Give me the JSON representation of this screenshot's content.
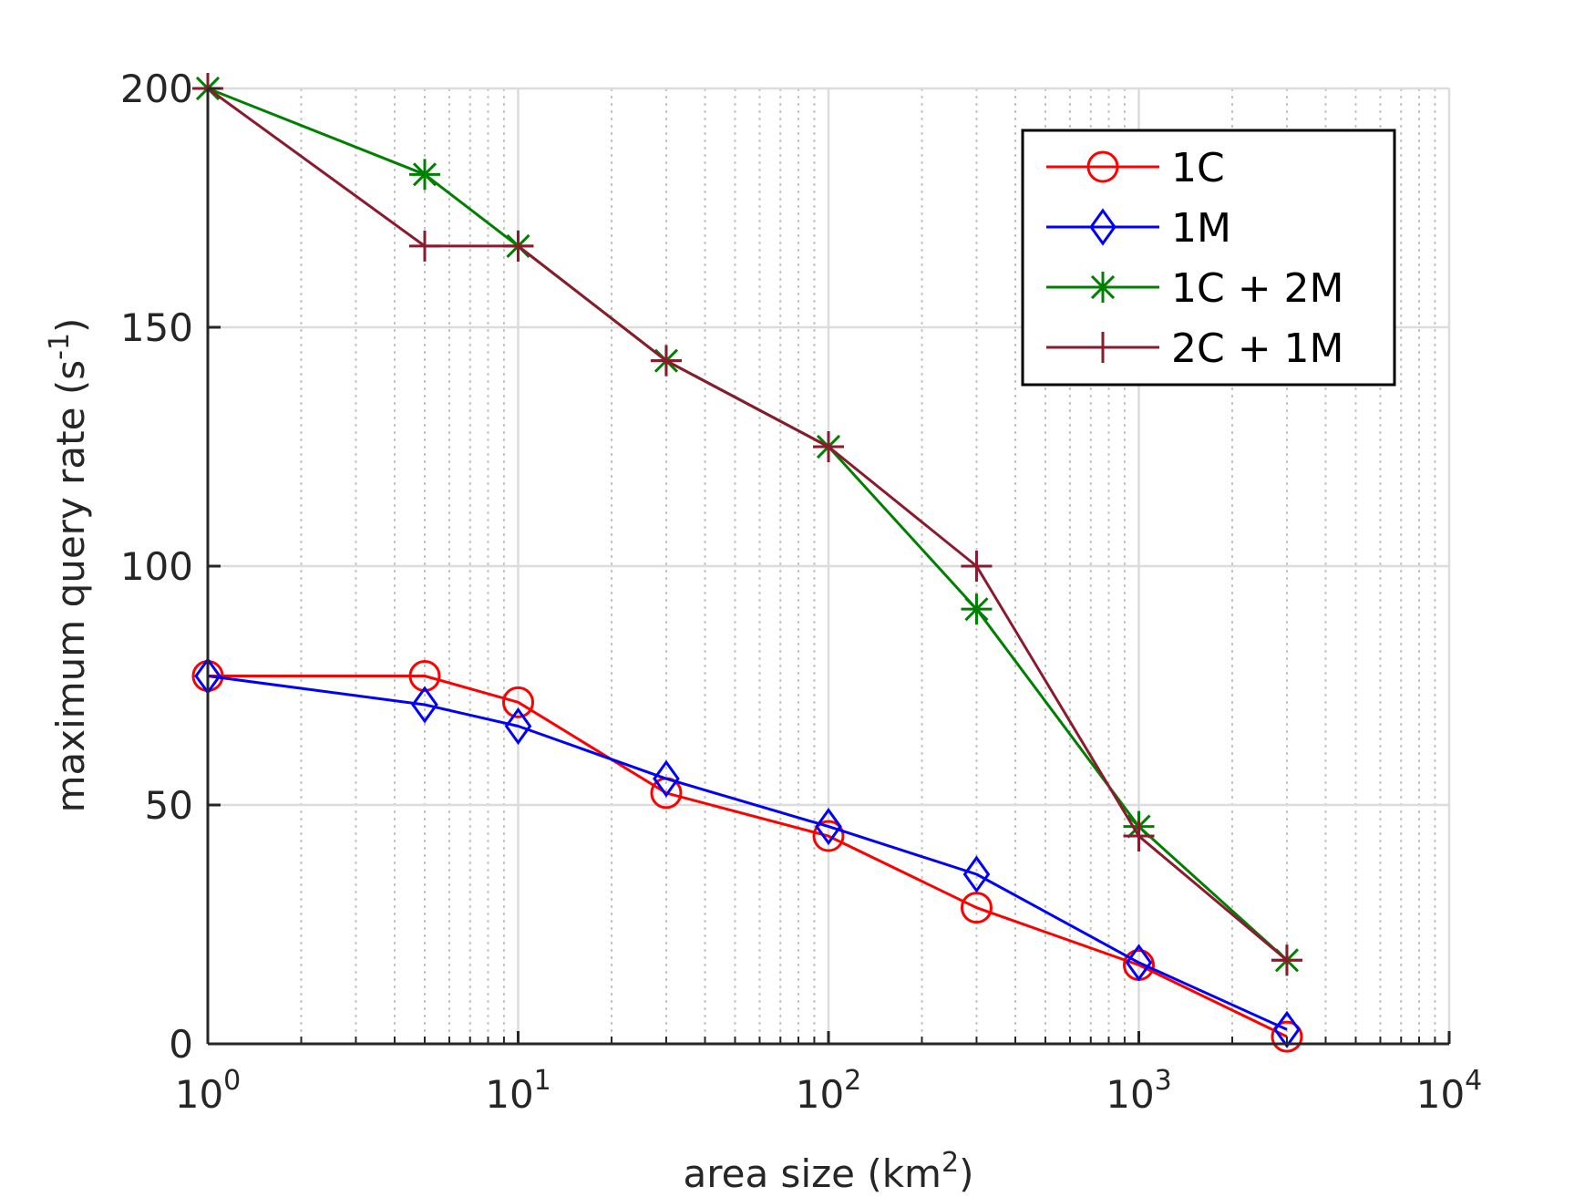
{
  "chart_data": {
    "type": "line",
    "xlabel": "area size (km",
    "xlabel_sup": "2",
    "xlabel_tail": ")",
    "ylabel": "maximum query rate (s",
    "ylabel_sup": "-1",
    "ylabel_tail": ")",
    "x_scale": "log",
    "xlim": [
      1,
      10000
    ],
    "ylim": [
      0,
      200
    ],
    "grid": true,
    "minor_grid_x": true,
    "legend_position": "top-right",
    "x_ticks": [
      {
        "value": 1,
        "base": "10",
        "exp": "0"
      },
      {
        "value": 10,
        "base": "10",
        "exp": "1"
      },
      {
        "value": 100,
        "base": "10",
        "exp": "2"
      },
      {
        "value": 1000,
        "base": "10",
        "exp": "3"
      },
      {
        "value": 10000,
        "base": "10",
        "exp": "4"
      }
    ],
    "y_ticks": [
      {
        "value": 0,
        "label": "0"
      },
      {
        "value": 50,
        "label": "50"
      },
      {
        "value": 100,
        "label": "100"
      },
      {
        "value": 150,
        "label": "150"
      },
      {
        "value": 200,
        "label": "200"
      }
    ],
    "x": [
      1,
      5,
      10,
      30,
      100,
      300,
      1000,
      3000
    ],
    "series": [
      {
        "name": "1C",
        "color": "#ff0000",
        "marker": "circle",
        "values": [
          77,
          77,
          71.5,
          52.5,
          43.5,
          28.5,
          16.5,
          1.5
        ]
      },
      {
        "name": "1M",
        "color": "#0000ff",
        "marker": "diamond",
        "values": [
          77,
          71,
          66.5,
          55.5,
          45.5,
          35.5,
          17,
          3
        ]
      },
      {
        "name": "1C + 2M",
        "color": "#008000",
        "marker": "asterisk",
        "values": [
          200,
          182,
          167,
          143,
          125,
          91,
          45.5,
          17.5
        ]
      },
      {
        "name": "2C + 1M",
        "color": "#8b1a2e",
        "marker": "plus",
        "values": [
          200,
          167,
          167,
          143,
          125,
          100,
          43.5,
          17.5
        ]
      }
    ]
  }
}
